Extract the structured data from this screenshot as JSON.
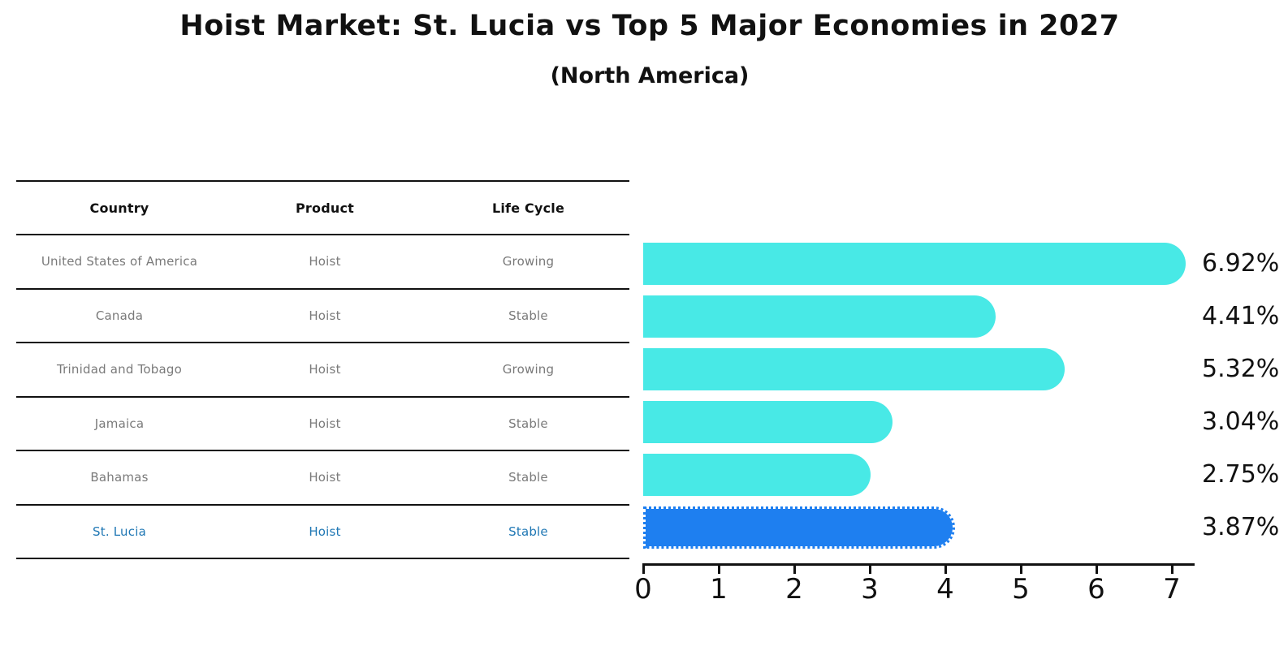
{
  "title": "Hoist Market: St. Lucia vs Top 5 Major Economies in 2027",
  "subtitle": "(North America)",
  "table": {
    "headers": [
      "Country",
      "Product",
      "Life Cycle"
    ],
    "rows": [
      {
        "country": "United States of America",
        "product": "Hoist",
        "life_cycle": "Growing"
      },
      {
        "country": "Canada",
        "product": "Hoist",
        "life_cycle": "Stable"
      },
      {
        "country": "Trinidad and Tobago",
        "product": "Hoist",
        "life_cycle": "Growing"
      },
      {
        "country": "Jamaica",
        "product": "Hoist",
        "life_cycle": "Stable"
      },
      {
        "country": "Bahamas",
        "product": "Hoist",
        "life_cycle": "Stable"
      },
      {
        "country": "St. Lucia",
        "product": "Hoist",
        "life_cycle": "Stable"
      }
    ]
  },
  "chart_data": {
    "type": "bar",
    "orientation": "horizontal",
    "title": "Hoist Market: St. Lucia vs Top 5 Major Economies in 2027",
    "subtitle": "(North America)",
    "categories": [
      "United States of America",
      "Canada",
      "Trinidad and Tobago",
      "Jamaica",
      "Bahamas",
      "St. Lucia"
    ],
    "values": [
      6.92,
      4.41,
      5.32,
      3.04,
      2.75,
      3.87
    ],
    "value_labels": [
      "6.92%",
      "4.41%",
      "5.32%",
      "3.04%",
      "2.75%",
      "3.87%"
    ],
    "xlabel": "",
    "ylabel": "",
    "xlim": [
      0,
      7.3
    ],
    "x_ticks": [
      "0",
      "1",
      "2",
      "3",
      "4",
      "5",
      "6",
      "7"
    ],
    "grid": false,
    "legend": false,
    "highlight_index": 5,
    "colors": {
      "bar_fill": "#48E9E6",
      "highlight_bar_fill": "#1E7FF0",
      "highlight_text": "#1F77B4",
      "table_text": "#7A7A7A",
      "header_text": "#111111",
      "axis": "#111111"
    }
  }
}
